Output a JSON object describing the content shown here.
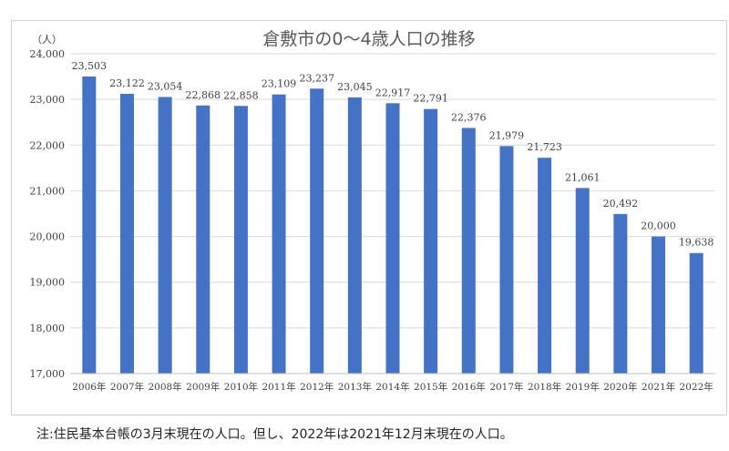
{
  "chart_data": {
    "type": "bar",
    "title": "倉敷市の0～4歳人口の推移",
    "unit_label": "（人）",
    "categories": [
      "2006年",
      "2007年",
      "2008年",
      "2009年",
      "2010年",
      "2011年",
      "2012年",
      "2013年",
      "2014年",
      "2015年",
      "2016年",
      "2017年",
      "2018年",
      "2019年",
      "2020年",
      "2021年",
      "2022年"
    ],
    "values": [
      23503,
      23122,
      23054,
      22868,
      22858,
      23109,
      23237,
      23045,
      22917,
      22791,
      22376,
      21979,
      21723,
      21061,
      20492,
      20000,
      19638
    ],
    "ylim": [
      17000,
      24000
    ],
    "yticks": [
      17000,
      18000,
      19000,
      20000,
      21000,
      22000,
      23000,
      24000
    ],
    "grid": true,
    "bar_color": "#4472c4"
  },
  "note": "注:住民基本台帳の3月末現在の人口。但し、2022年は2021年12月末現在の人口。"
}
